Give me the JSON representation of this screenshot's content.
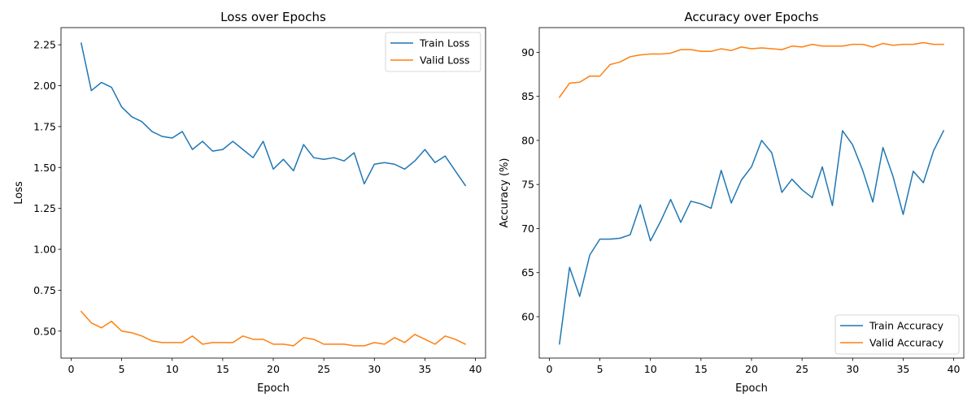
{
  "chart_data": [
    {
      "type": "line",
      "title": "Loss over Epochs",
      "xlabel": "Epoch",
      "ylabel": "Loss",
      "xlim": [
        -1,
        41
      ],
      "ylim": [
        0.335,
        2.355
      ],
      "xticks": [
        0,
        5,
        10,
        15,
        20,
        25,
        30,
        35,
        40
      ],
      "xtick_labels": [
        "0",
        "5",
        "10",
        "15",
        "20",
        "25",
        "30",
        "35",
        "40"
      ],
      "yticks": [
        0.5,
        0.75,
        1.0,
        1.25,
        1.5,
        1.75,
        2.0,
        2.25
      ],
      "ytick_labels": [
        "0.50",
        "0.75",
        "1.00",
        "1.25",
        "1.50",
        "1.75",
        "2.00",
        "2.25"
      ],
      "grid": false,
      "legend_position": "upper right",
      "x": [
        1,
        2,
        3,
        4,
        5,
        6,
        7,
        8,
        9,
        10,
        11,
        12,
        13,
        14,
        15,
        16,
        17,
        18,
        19,
        20,
        21,
        22,
        23,
        24,
        25,
        26,
        27,
        28,
        29,
        30,
        31,
        32,
        33,
        34,
        35,
        36,
        37,
        38,
        39
      ],
      "series": [
        {
          "name": "Train Loss",
          "color": "#1f77b4",
          "values": [
            2.26,
            1.97,
            2.02,
            1.99,
            1.87,
            1.81,
            1.78,
            1.72,
            1.69,
            1.68,
            1.72,
            1.61,
            1.66,
            1.6,
            1.61,
            1.66,
            1.61,
            1.56,
            1.66,
            1.49,
            1.55,
            1.48,
            1.64,
            1.56,
            1.55,
            1.56,
            1.54,
            1.59,
            1.4,
            1.52,
            1.53,
            1.52,
            1.49,
            1.54,
            1.61,
            1.53,
            1.57,
            1.48,
            1.39
          ]
        },
        {
          "name": "Valid Loss",
          "color": "#ff7f0e",
          "values": [
            0.62,
            0.55,
            0.52,
            0.56,
            0.5,
            0.49,
            0.47,
            0.44,
            0.43,
            0.43,
            0.43,
            0.47,
            0.42,
            0.43,
            0.43,
            0.43,
            0.47,
            0.45,
            0.45,
            0.42,
            0.42,
            0.41,
            0.46,
            0.45,
            0.42,
            0.42,
            0.42,
            0.41,
            0.41,
            0.43,
            0.42,
            0.46,
            0.43,
            0.48,
            0.45,
            0.42,
            0.47,
            0.45,
            0.42
          ]
        }
      ]
    },
    {
      "type": "line",
      "title": "Accuracy over Epochs",
      "xlabel": "Epoch",
      "ylabel": "Accuracy (%)",
      "xlim": [
        -1,
        41
      ],
      "ylim": [
        55.3,
        92.8
      ],
      "xticks": [
        0,
        5,
        10,
        15,
        20,
        25,
        30,
        35,
        40
      ],
      "xtick_labels": [
        "0",
        "5",
        "10",
        "15",
        "20",
        "25",
        "30",
        "35",
        "40"
      ],
      "yticks": [
        60,
        65,
        70,
        75,
        80,
        85,
        90
      ],
      "ytick_labels": [
        "60",
        "65",
        "70",
        "75",
        "80",
        "85",
        "90"
      ],
      "grid": false,
      "legend_position": "lower right",
      "x": [
        1,
        2,
        3,
        4,
        5,
        6,
        7,
        8,
        9,
        10,
        11,
        12,
        13,
        14,
        15,
        16,
        17,
        18,
        19,
        20,
        21,
        22,
        23,
        24,
        25,
        26,
        27,
        28,
        29,
        30,
        31,
        32,
        33,
        34,
        35,
        36,
        37,
        38,
        39
      ],
      "series": [
        {
          "name": "Train Accuracy",
          "color": "#1f77b4",
          "values": [
            56.9,
            65.6,
            62.3,
            67.0,
            68.8,
            68.8,
            68.9,
            69.3,
            72.7,
            68.6,
            70.8,
            73.3,
            70.7,
            73.1,
            72.8,
            72.3,
            76.6,
            72.9,
            75.5,
            77.0,
            80.0,
            78.6,
            74.1,
            75.6,
            74.4,
            73.5,
            77.0,
            72.6,
            81.1,
            79.5,
            76.6,
            73.0,
            79.2,
            75.9,
            71.6,
            76.5,
            75.2,
            78.8,
            81.1
          ]
        },
        {
          "name": "Valid Accuracy",
          "color": "#ff7f0e",
          "values": [
            84.9,
            86.5,
            86.6,
            87.3,
            87.3,
            88.6,
            88.9,
            89.5,
            89.7,
            89.8,
            89.8,
            89.9,
            90.3,
            90.3,
            90.1,
            90.1,
            90.4,
            90.2,
            90.6,
            90.4,
            90.5,
            90.4,
            90.3,
            90.7,
            90.6,
            90.9,
            90.7,
            90.7,
            90.7,
            90.9,
            90.9,
            90.6,
            91.0,
            90.8,
            90.9,
            90.9,
            91.1,
            90.9,
            90.9
          ]
        }
      ]
    }
  ]
}
